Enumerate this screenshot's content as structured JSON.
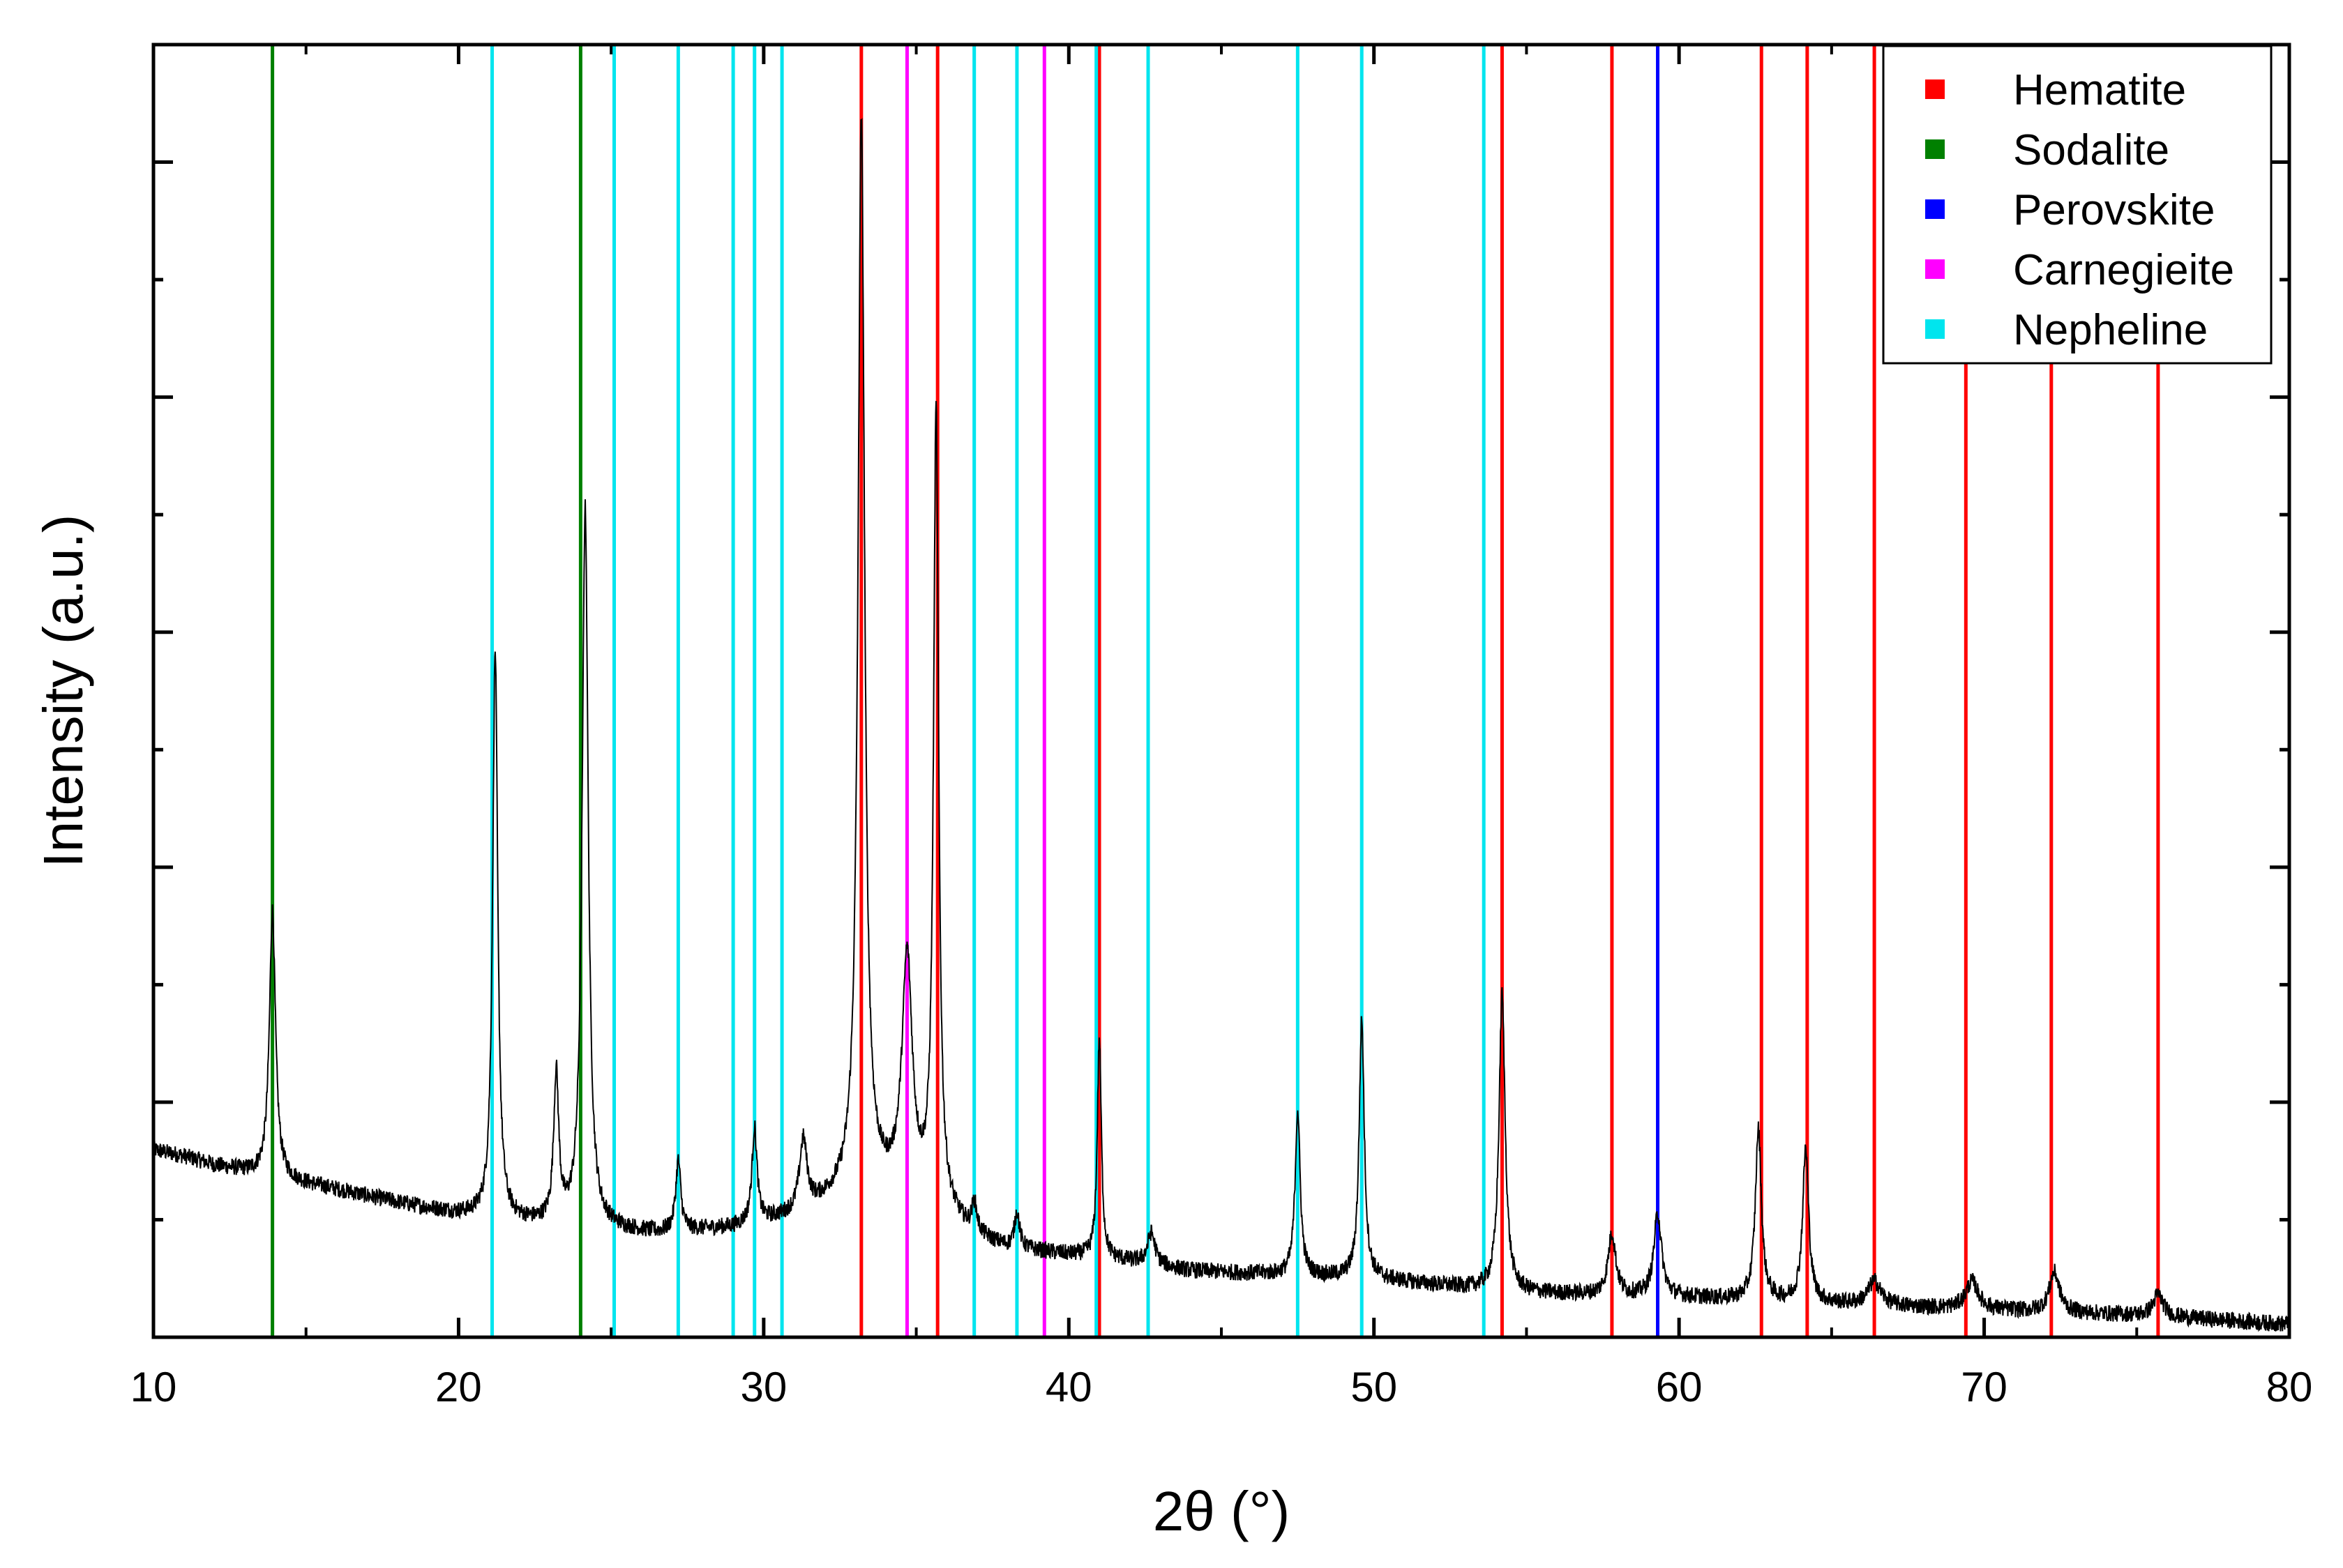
{
  "chart_data": {
    "type": "line",
    "title": "",
    "xlabel": "2θ (°)",
    "ylabel": "Intensity (a.u.)",
    "xlim": [
      10,
      80
    ],
    "ylim": [
      0,
      100
    ],
    "x_ticks": [
      10,
      20,
      30,
      40,
      50,
      60,
      70,
      80
    ],
    "x_tick_labels": [
      "10",
      "20",
      "30",
      "40",
      "50",
      "60",
      "70",
      "80"
    ],
    "y_tick_labels_shown": false,
    "grid": false,
    "legend_position": "top-right",
    "pattern": {
      "baseline": [
        [
          10,
          14.5
        ],
        [
          11,
          14.0
        ],
        [
          12,
          13.3
        ],
        [
          13,
          12.8
        ],
        [
          14,
          12.3
        ],
        [
          16,
          11.4
        ],
        [
          18,
          10.4
        ],
        [
          20,
          9.5
        ],
        [
          21.5,
          9.0
        ],
        [
          23,
          8.6
        ],
        [
          25,
          8.3
        ],
        [
          26.5,
          8.0
        ],
        [
          29,
          8.4
        ],
        [
          31,
          9.3
        ],
        [
          32.2,
          10.5
        ],
        [
          33.5,
          11.5
        ],
        [
          34.5,
          11.0
        ],
        [
          36,
          9.2
        ],
        [
          37,
          7.6
        ],
        [
          38,
          6.8
        ],
        [
          40,
          6.3
        ],
        [
          42,
          5.8
        ],
        [
          44,
          5.1
        ],
        [
          46,
          4.9
        ],
        [
          50,
          4.5
        ],
        [
          53,
          3.8
        ],
        [
          55,
          3.4
        ],
        [
          60,
          3.1
        ],
        [
          65,
          2.6
        ],
        [
          70,
          2.1
        ],
        [
          75,
          1.7
        ],
        [
          80,
          1.0
        ]
      ],
      "peaks": [
        {
          "x": 13.9,
          "y": 33,
          "w": 0.12
        },
        {
          "x": 21.2,
          "y": 53,
          "w": 0.1
        },
        {
          "x": 23.2,
          "y": 20,
          "w": 0.1
        },
        {
          "x": 24.15,
          "y": 64,
          "w": 0.12
        },
        {
          "x": 27.2,
          "y": 13.5,
          "w": 0.1
        },
        {
          "x": 29.7,
          "y": 16,
          "w": 0.1
        },
        {
          "x": 31.3,
          "y": 15,
          "w": 0.15
        },
        {
          "x": 33.2,
          "y": 94,
          "w": 0.13
        },
        {
          "x": 34.7,
          "y": 29,
          "w": 0.2
        },
        {
          "x": 35.65,
          "y": 71,
          "w": 0.1
        },
        {
          "x": 36.9,
          "y": 10,
          "w": 0.1
        },
        {
          "x": 38.3,
          "y": 9.5,
          "w": 0.1
        },
        {
          "x": 41.0,
          "y": 23,
          "w": 0.08
        },
        {
          "x": 42.7,
          "y": 8,
          "w": 0.15
        },
        {
          "x": 47.5,
          "y": 17.5,
          "w": 0.1
        },
        {
          "x": 49.6,
          "y": 24.5,
          "w": 0.1
        },
        {
          "x": 54.2,
          "y": 26.5,
          "w": 0.12
        },
        {
          "x": 57.8,
          "y": 8,
          "w": 0.15
        },
        {
          "x": 59.3,
          "y": 9.5,
          "w": 0.15
        },
        {
          "x": 62.6,
          "y": 16,
          "w": 0.12
        },
        {
          "x": 64.15,
          "y": 14.5,
          "w": 0.12
        },
        {
          "x": 66.4,
          "y": 4.3,
          "w": 0.25
        },
        {
          "x": 69.6,
          "y": 4.3,
          "w": 0.25
        },
        {
          "x": 72.3,
          "y": 5.0,
          "w": 0.2
        },
        {
          "x": 75.7,
          "y": 3.3,
          "w": 0.2
        }
      ]
    },
    "reference_lines": [
      {
        "phase": "Hematite",
        "color": "#ff0000",
        "positions": [
          33.2,
          35.7,
          41.0,
          54.2,
          57.8,
          62.7,
          64.2,
          66.4,
          69.4,
          72.2,
          75.7
        ]
      },
      {
        "phase": "Sodalite",
        "color": "#008000",
        "positions": [
          13.9,
          24.0
        ]
      },
      {
        "phase": "Perovskite",
        "color": "#0000ff",
        "positions": [
          59.3
        ]
      },
      {
        "phase": "Carnegieite",
        "color": "#ff00ff",
        "positions": [
          34.7,
          39.2
        ]
      },
      {
        "phase": "Nepheline",
        "color": "#00e5ee",
        "positions": [
          21.1,
          25.1,
          27.2,
          29.0,
          29.7,
          30.6,
          36.9,
          38.3,
          40.9,
          42.6,
          47.5,
          49.6,
          53.6
        ]
      }
    ],
    "legend": [
      {
        "label": "Hematite",
        "color": "#ff0000"
      },
      {
        "label": "Sodalite",
        "color": "#008000"
      },
      {
        "label": "Perovskite",
        "color": "#0000ff"
      },
      {
        "label": "Carnegieite",
        "color": "#ff00ff"
      },
      {
        "label": "Nepheline",
        "color": "#00e5ee"
      }
    ]
  }
}
